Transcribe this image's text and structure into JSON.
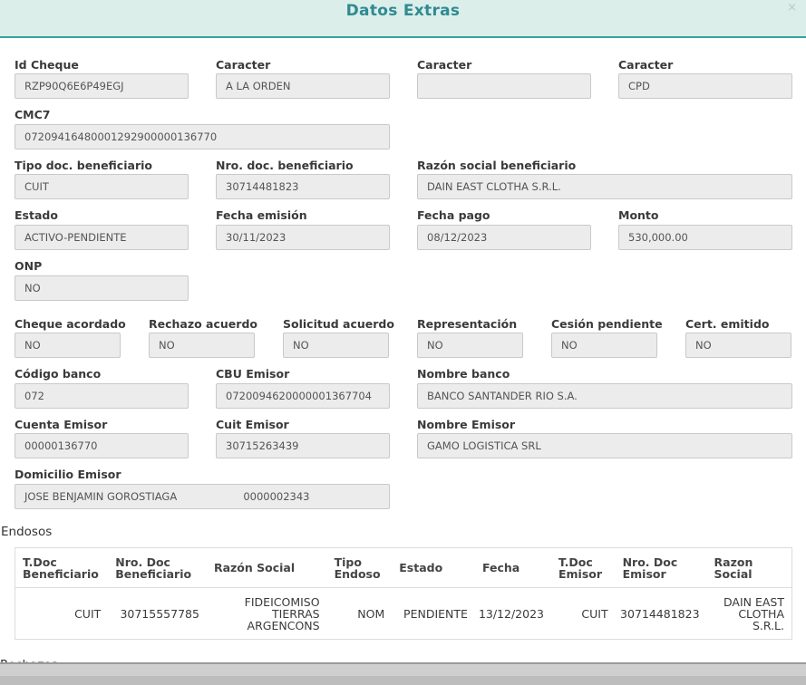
{
  "modal": {
    "title": "Datos Extras",
    "close_label": "×"
  },
  "fields": {
    "id_cheque": {
      "label": "Id Cheque",
      "value": "RZP90Q6E6P49EGJ"
    },
    "caracter_1": {
      "label": "Caracter",
      "value": "A LA ORDEN"
    },
    "caracter_2": {
      "label": "Caracter",
      "value": ""
    },
    "caracter_3": {
      "label": "Caracter",
      "value": "CPD"
    },
    "cmc7": {
      "label": "CMC7",
      "value": "07209416480001292900000136770"
    },
    "tipo_doc_benef": {
      "label": "Tipo doc. beneficiario",
      "value": "CUIT"
    },
    "nro_doc_benef": {
      "label": "Nro. doc. beneficiario",
      "value": "30714481823"
    },
    "razon_social_benef": {
      "label": "Razón social beneficiario",
      "value": "DAIN EAST CLOTHA S.R.L."
    },
    "estado": {
      "label": "Estado",
      "value": "ACTIVO-PENDIENTE"
    },
    "fecha_emision": {
      "label": "Fecha emisión",
      "value": "30/11/2023"
    },
    "fecha_pago": {
      "label": "Fecha pago",
      "value": "08/12/2023"
    },
    "monto": {
      "label": "Monto",
      "value": "530,000.00"
    },
    "onp": {
      "label": "ONP",
      "value": "NO"
    },
    "cheque_acordado": {
      "label": "Cheque acordado",
      "value": "NO"
    },
    "rechazo_acuerdo": {
      "label": "Rechazo acuerdo",
      "value": "NO"
    },
    "solicitud_acuerdo": {
      "label": "Solicitud acuerdo",
      "value": "NO"
    },
    "representacion": {
      "label": "Representación",
      "value": "NO"
    },
    "cesion_pendiente": {
      "label": "Cesión pendiente",
      "value": "NO"
    },
    "cert_emitido": {
      "label": "Cert. emitido",
      "value": "NO"
    },
    "codigo_banco": {
      "label": "Código banco",
      "value": "072"
    },
    "cbu_emisor": {
      "label": "CBU Emisor",
      "value": "0720094620000001367704"
    },
    "nombre_banco": {
      "label": "Nombre banco",
      "value": "BANCO SANTANDER RIO S.A."
    },
    "cuenta_emisor": {
      "label": "Cuenta Emisor",
      "value": "00000136770"
    },
    "cuit_emisor": {
      "label": "Cuit Emisor",
      "value": "30715263439"
    },
    "nombre_emisor": {
      "label": "Nombre Emisor",
      "value": "GAMO LOGISTICA SRL"
    },
    "domicilio_emisor": {
      "label": "Domicilio Emisor",
      "value": "JOSE BENJAMIN GOROSTIAGA                    0000002343"
    }
  },
  "endosos": {
    "title": "Endosos",
    "columns": [
      "T.Doc Beneficiario",
      "Nro. Doc Beneficiario",
      "Razón Social",
      "Tipo Endoso",
      "Estado",
      "Fecha",
      "T.Doc Emisor",
      "Nro. Doc Emisor",
      "Razon Social"
    ],
    "rows": [
      [
        "CUIT",
        "30715557785",
        "FIDEICOMISO TIERRAS ARGENCONS",
        "NOM",
        "PENDIENTE",
        "13/12/2023",
        "CUIT",
        "30714481823",
        "DAIN EAST CLOTHA S.R.L."
      ]
    ]
  },
  "next_section_partial": "Rechazos"
}
